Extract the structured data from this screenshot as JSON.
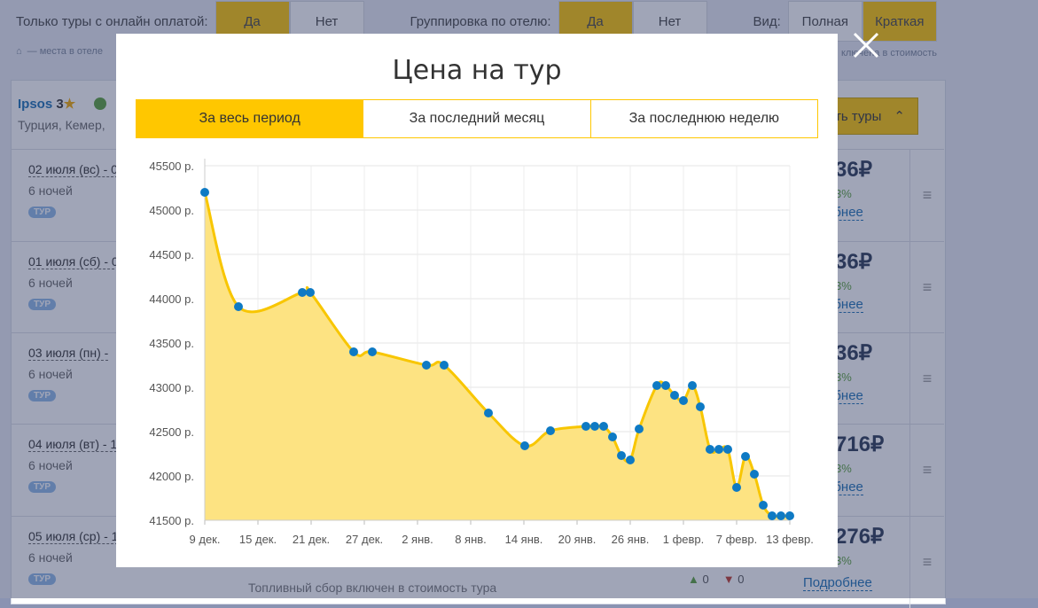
{
  "filters": {
    "online_pay_label": "Только туры с онлайн оплатой:",
    "online_pay_yes": "Да",
    "online_pay_no": "Нет",
    "group_label": "Группировка по отелю:",
    "group_yes": "Да",
    "group_no": "Нет",
    "view_label": "Вид:",
    "view_full": "Полная",
    "view_short": "Краткая",
    "legend_places": "— места в отеле",
    "legend_cost": "ключена в стоимость"
  },
  "hotel": {
    "name": "Ipsos",
    "stars": "3",
    "location": "Турция, Кемер,",
    "show_tours": "ть туры"
  },
  "rows": [
    {
      "date": "02 июля (вс) - 0",
      "nights": "6 ночей",
      "badge": "ТУР",
      "price": "36₽",
      "pct": "3%",
      "more": "обнее"
    },
    {
      "date": "01 июля (сб) - 0",
      "nights": "6 ночей",
      "badge": "ТУР",
      "price": "36₽",
      "pct": "3%",
      "more": "обнее"
    },
    {
      "date": "03 июля (пн) -",
      "nights": "6 ночей",
      "badge": "ТУР",
      "price": "36₽",
      "pct": "3%",
      "more": "обнее"
    },
    {
      "date": "04 июля (вт) - 1",
      "nights": "6 ночей",
      "badge": "ТУР",
      "price": "716₽",
      "pct": "3%",
      "more": "обнее"
    },
    {
      "date": "05 июля (ср) - 1",
      "nights": "6 ночей",
      "badge": "ТУР",
      "price": "276₽",
      "pct": "3%",
      "more": "Подробнее"
    }
  ],
  "fuel_note": "Топливный сбор включен в стоимость тура",
  "likes": {
    "up": "0",
    "down": "0"
  },
  "modal": {
    "title": "Цена на тур",
    "tabs": [
      "За весь период",
      "За последний месяц",
      "За последнюю неделю"
    ]
  },
  "colors": {
    "accent": "#ffc700",
    "line": "#f8c600",
    "area": "#fde382",
    "point": "#0e7ac4"
  },
  "chart_data": {
    "type": "area",
    "title": "",
    "xlabel": "",
    "ylabel": "",
    "x_ticks": [
      "9 дек.",
      "15 дек.",
      "21 дек.",
      "27 дек.",
      "2 янв.",
      "8 янв.",
      "14 янв.",
      "20 янв.",
      "26 янв.",
      "1 февр.",
      "7 февр.",
      "13 февр."
    ],
    "y_ticks": [
      "41500 р.",
      "42000 р.",
      "42500 р.",
      "43000 р.",
      "43500 р.",
      "44000 р.",
      "44500 р.",
      "45000 р.",
      "45500 р."
    ],
    "ylim": [
      41500,
      45500
    ],
    "xlim_days": [
      0,
      66
    ],
    "grid": true,
    "series": [
      {
        "x": [
          0,
          3.8,
          11,
          11.9,
          16.8,
          18.9,
          25,
          27,
          32,
          36.1,
          39,
          43,
          44,
          45,
          46,
          47,
          48,
          49,
          51,
          52,
          53,
          54,
          55,
          55.9,
          57,
          58,
          59,
          60,
          61,
          62,
          63,
          64,
          65,
          66
        ],
        "y": [
          45200,
          43910,
          44070,
          44070,
          43400,
          43400,
          43250,
          43250,
          42710,
          42340,
          42510,
          42560,
          42560,
          42560,
          42440,
          42230,
          42180,
          42530,
          43020,
          43020,
          42910,
          42850,
          43020,
          42780,
          42300,
          42300,
          42300,
          41870,
          42220,
          42020,
          41670,
          41550,
          41550,
          41550
        ]
      }
    ]
  }
}
